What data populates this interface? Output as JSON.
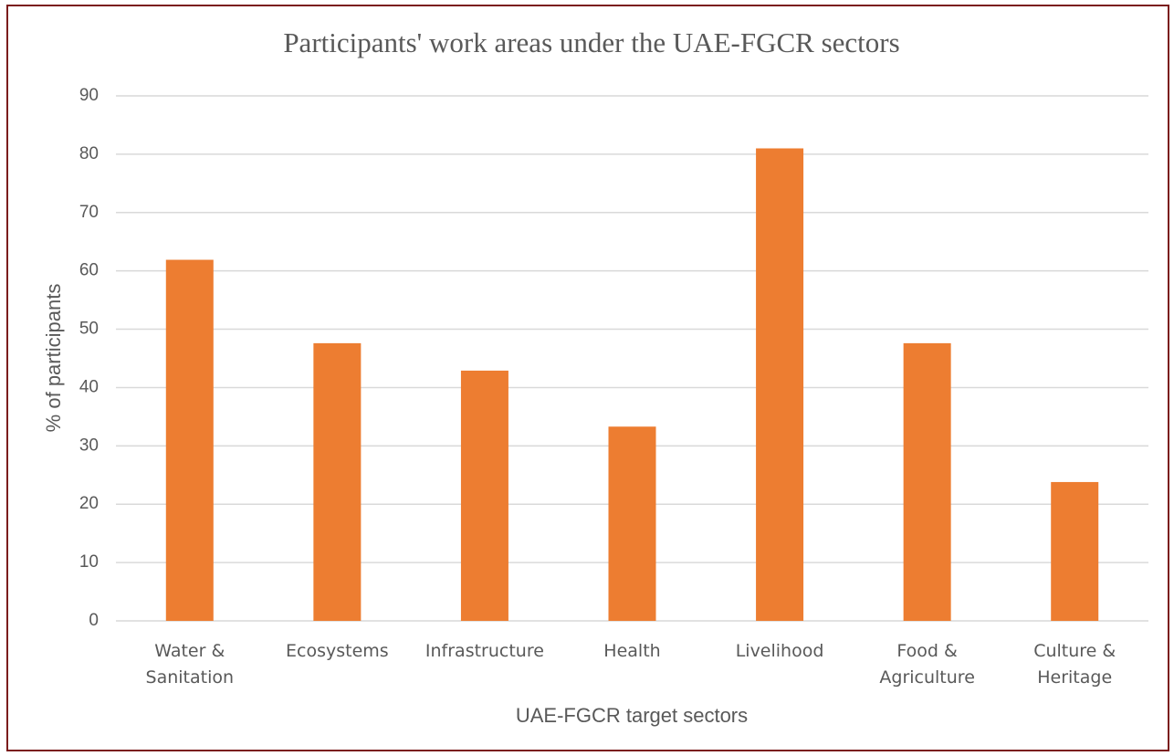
{
  "chart_data": {
    "type": "bar",
    "title": "Participants' work areas under the UAE-FGCR sectors",
    "xlabel": "UAE-FGCR target sectors",
    "ylabel": "% of participants",
    "categories": [
      "Water & Sanitation",
      "Ecosystems",
      "Infrastructure",
      "Health",
      "Livelihood",
      "Food & Agriculture",
      "Culture & Heritage"
    ],
    "values": [
      61.9,
      47.6,
      42.9,
      33.3,
      81.0,
      47.6,
      23.8
    ],
    "color": "#ed7d31",
    "ylim": [
      0,
      90
    ],
    "yticks": [
      0,
      10,
      20,
      30,
      40,
      50,
      60,
      70,
      80,
      90
    ],
    "grid": true
  }
}
